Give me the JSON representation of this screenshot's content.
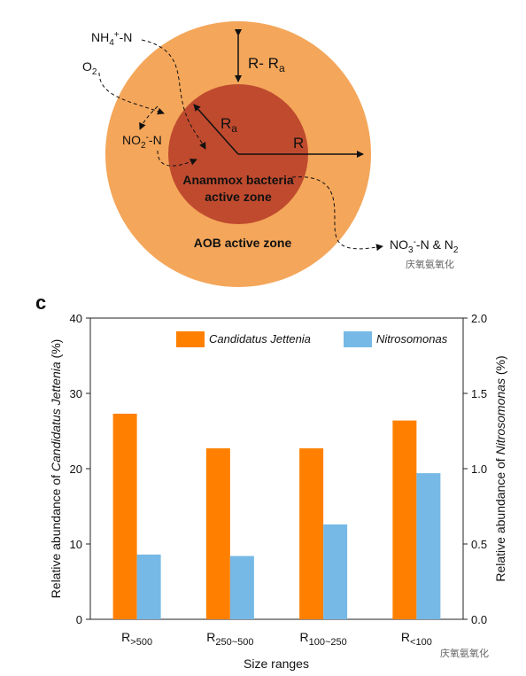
{
  "diagram": {
    "labels": {
      "nh4": "NH4+-N",
      "o2": "O2",
      "no2": "NO2--N",
      "r_minus_ra": "R- Ra",
      "ra": "Ra",
      "r": "R",
      "anammox_line1": "Anammox bacteria",
      "anammox_line2": "active zone",
      "aob": "AOB active zone",
      "products": "NO3--N & N2"
    },
    "colors": {
      "outer": "#F4A65A",
      "inner": "#BF4A2E"
    }
  },
  "watermark": "庆氧氨氧化",
  "panel_label": "c",
  "chart_data": {
    "type": "bar",
    "categories": [
      "R>500",
      "R250~500",
      "R100~250",
      "R<100"
    ],
    "category_parts": [
      {
        "base": "R",
        "sub": ">500"
      },
      {
        "base": "R",
        "sub": "250~500"
      },
      {
        "base": "R",
        "sub": "100~250"
      },
      {
        "base": "R",
        "sub": "<100"
      }
    ],
    "series": [
      {
        "name": "Candidatus Jettenia",
        "axis": "left",
        "color": "#FF8000",
        "values": [
          27.3,
          22.7,
          22.7,
          26.4
        ]
      },
      {
        "name": "Nitrosomonas",
        "axis": "right",
        "color": "#76B9E6",
        "values": [
          0.43,
          0.42,
          0.63,
          0.97
        ]
      }
    ],
    "xlabel": "Size ranges",
    "ylabel_left": "Relative abundance of Candidatus Jettenia (%)",
    "ylabel_right": "Relative abundance of Nitrosomonas (%)",
    "ylim_left": [
      0,
      40
    ],
    "ylim_right": [
      0,
      2.0
    ],
    "yticks_left": [
      "0",
      "10",
      "20",
      "30",
      "40"
    ],
    "yticks_right": [
      "0.0",
      "0.5",
      "1.0",
      "1.5",
      "2.0"
    ],
    "legend_position": "top",
    "grid": false
  }
}
